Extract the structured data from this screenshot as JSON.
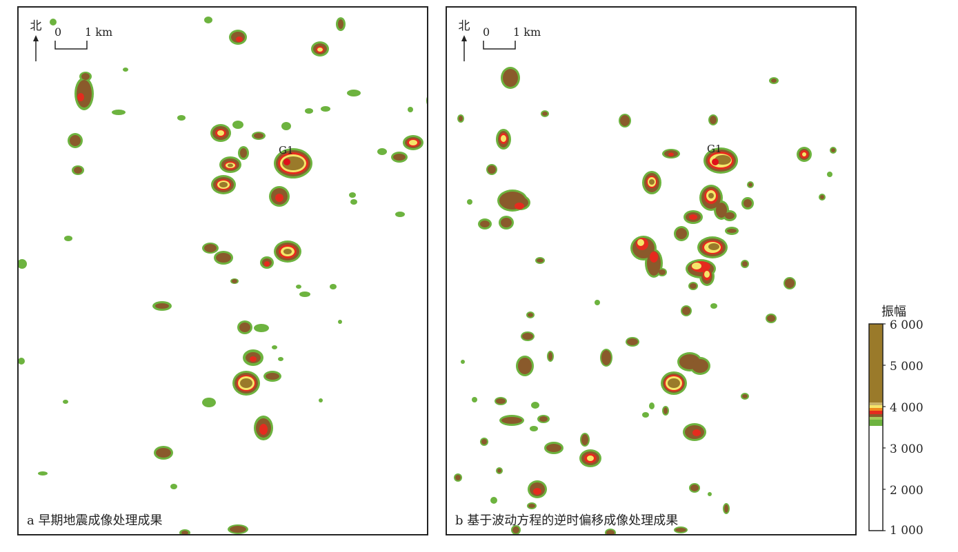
{
  "colors": {
    "outer": "#6db33f",
    "mid": "#8a5a2b",
    "red": "#e52b1e",
    "orange": "#f08a1c",
    "yellow": "#f5e66a",
    "core": "#9a7a2a",
    "well": "#e0101a"
  },
  "panels": [
    {
      "north_label": "北",
      "scale_zero": "0",
      "scale_one": "1 km",
      "caption": "a 早期地震成像处理成果",
      "well_label": "G1"
    },
    {
      "north_label": "北",
      "scale_zero": "0",
      "scale_one": "1 km",
      "caption": "b 基于波动方程的逆时偏移成像处理成果",
      "well_label": "G1"
    }
  ],
  "legend": {
    "title": "振幅",
    "ticks": [
      "6 000",
      "5 000",
      "4 000",
      "3 000",
      "2 000",
      "1 000"
    ],
    "range": [
      1000,
      6000
    ]
  }
}
